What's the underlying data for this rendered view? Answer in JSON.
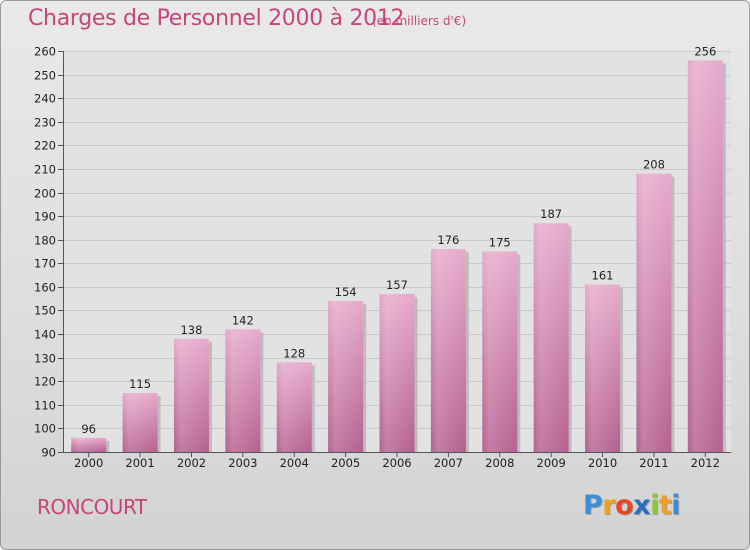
{
  "header": {
    "title": "Charges de Personnel 2000 à 2012",
    "unit": "(en milliers d'€)"
  },
  "footer": {
    "commune": "RONCOURT",
    "brand": "Proxiti"
  },
  "colors": {
    "accent": "#c8457a",
    "bar_top": "#e7a9cc",
    "bar_bottom": "#b4608f"
  },
  "chart_data": {
    "type": "bar",
    "title": "Charges de Personnel 2000 à 2012",
    "subtitle": "(en milliers d'€)",
    "categories": [
      "2000",
      "2001",
      "2002",
      "2003",
      "2004",
      "2005",
      "2006",
      "2007",
      "2008",
      "2009",
      "2010",
      "2011",
      "2012"
    ],
    "values": [
      96,
      115,
      138,
      142,
      128,
      154,
      157,
      176,
      175,
      187,
      161,
      208,
      256
    ],
    "ylim": [
      90,
      260
    ],
    "yticks": [
      90,
      100,
      110,
      120,
      130,
      140,
      150,
      160,
      170,
      180,
      190,
      200,
      210,
      220,
      230,
      240,
      250,
      260
    ],
    "grid": true,
    "data_labels": true
  }
}
